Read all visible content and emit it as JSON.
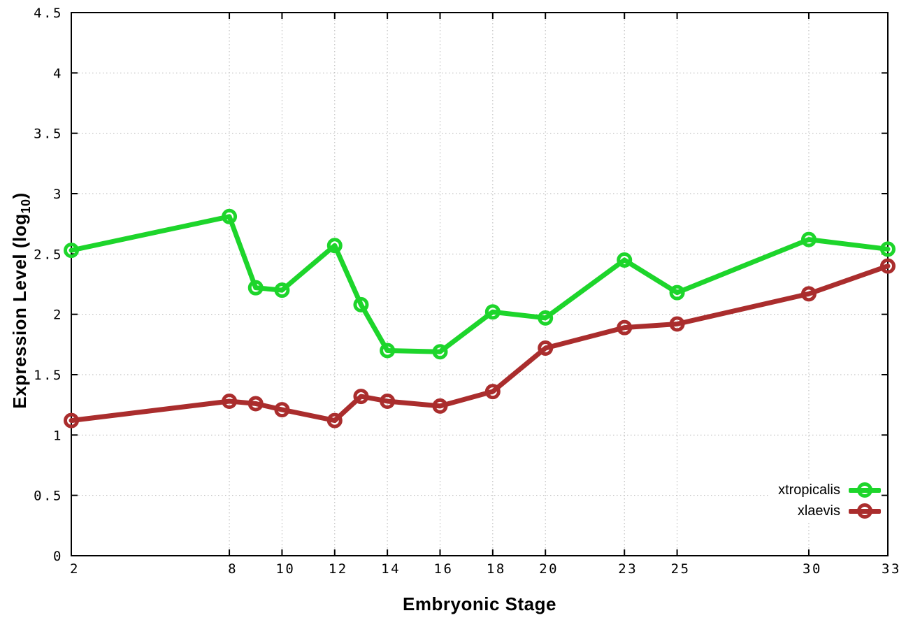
{
  "chart_data": {
    "type": "line",
    "title": "",
    "xlabel": "Embryonic Stage",
    "ylabel": {
      "prefix": "Expression Level (log",
      "sub": "10",
      "suffix": ")"
    },
    "xlim": [
      2,
      33
    ],
    "ylim": [
      0,
      4.5
    ],
    "xticks": [
      2,
      8,
      10,
      12,
      14,
      16,
      18,
      20,
      23,
      25,
      30,
      33
    ],
    "yticks": [
      0,
      0.5,
      1,
      1.5,
      2,
      2.5,
      3,
      3.5,
      4,
      4.5
    ],
    "grid": true,
    "legend_position": "inside-bottom-right",
    "x": [
      2,
      8,
      9,
      10,
      12,
      13,
      14,
      16,
      18,
      20,
      23,
      25,
      30,
      33
    ],
    "series": [
      {
        "name": "xtropicalis",
        "color": "#1dd52b",
        "marker": "open-circle",
        "values": [
          2.53,
          2.81,
          2.22,
          2.2,
          2.57,
          2.08,
          1.7,
          1.69,
          2.02,
          1.97,
          2.45,
          2.18,
          2.62,
          2.54
        ]
      },
      {
        "name": "xlaevis",
        "color": "#aa2d2d",
        "marker": "open-circle",
        "values": [
          1.12,
          1.28,
          1.26,
          1.21,
          1.12,
          1.32,
          1.28,
          1.24,
          1.36,
          1.72,
          1.89,
          1.92,
          2.17,
          2.4
        ]
      }
    ]
  }
}
